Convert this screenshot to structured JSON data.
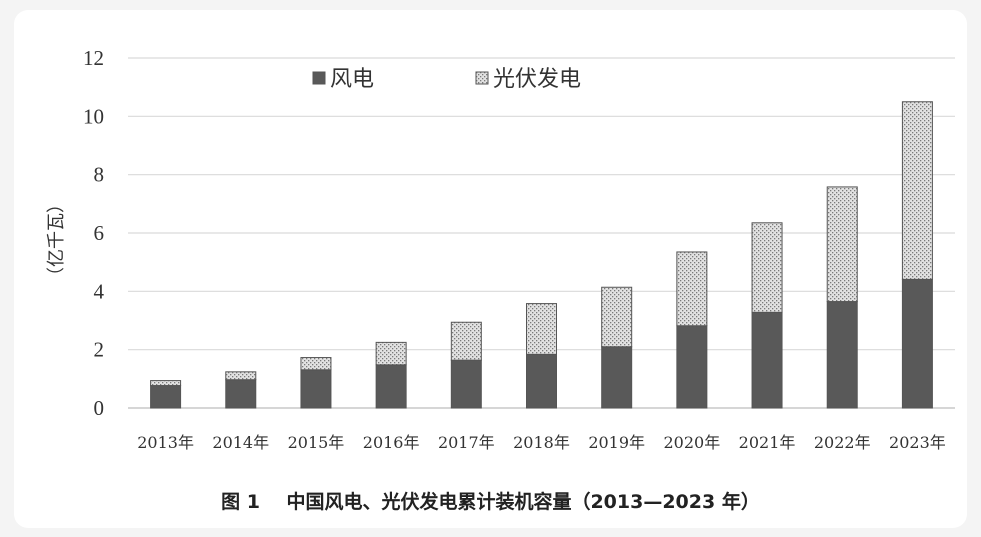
{
  "chart_data": {
    "type": "bar",
    "stacked": true,
    "ylabel": "（亿千瓦）",
    "ylim": [
      0,
      12
    ],
    "yticks": [
      0,
      2,
      4,
      6,
      8,
      10,
      12
    ],
    "grid": true,
    "legend_position": "top-center",
    "categories": [
      "2013年",
      "2014年",
      "2015年",
      "2016年",
      "2017年",
      "2018年",
      "2019年",
      "2020年",
      "2021年",
      "2022年",
      "2023年"
    ],
    "series": [
      {
        "name": "风电",
        "values": [
          0.77,
          0.97,
          1.31,
          1.48,
          1.64,
          1.84,
          2.1,
          2.82,
          3.28,
          3.65,
          4.41
        ],
        "color": "#595959",
        "pattern": "solid"
      },
      {
        "name": "光伏发电",
        "values": [
          0.17,
          0.27,
          0.42,
          0.77,
          1.3,
          1.74,
          2.04,
          2.53,
          3.07,
          3.93,
          6.09
        ],
        "color": "#d0d0d0",
        "pattern": "dotted"
      }
    ]
  },
  "caption": {
    "figure_no": "图 1",
    "title": "中国风电、光伏发电累计装机容量（2013—2023 年）"
  }
}
